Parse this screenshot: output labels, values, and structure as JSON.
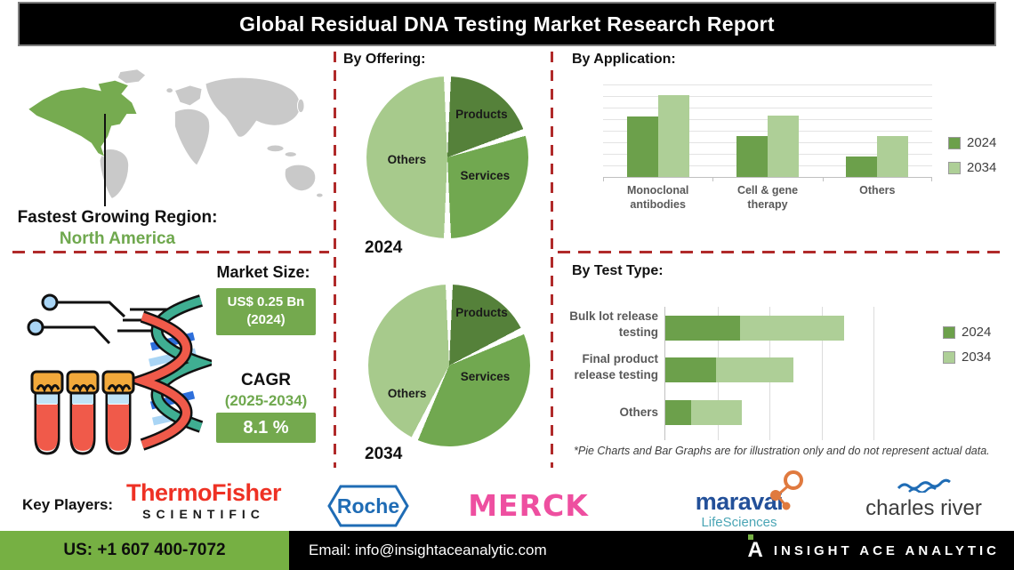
{
  "title": "Global Residual DNA Testing Market Research Report",
  "region": {
    "label": "Fastest Growing Region:",
    "value": "North America"
  },
  "market": {
    "size_label": "Market Size:",
    "size_value": "US$ 0.25 Bn",
    "size_year": "(2024)",
    "cagr_label": "CAGR",
    "cagr_period": "(2025-2034)",
    "cagr_value": "8.1 %"
  },
  "chart_data": [
    {
      "type": "pie",
      "section": "By Offering:",
      "year": "2024",
      "slices": [
        {
          "label": "Products",
          "value": 20,
          "color": "#55813a",
          "label_pos": {
            "x": "55%",
            "y": "19%"
          }
        },
        {
          "label": "Services",
          "value": 30,
          "color": "#71a850",
          "label_pos": {
            "x": "58%",
            "y": "57%"
          }
        },
        {
          "label": "Others",
          "value": 50,
          "color": "#a7ca8c",
          "label_pos": {
            "x": "13%",
            "y": "47%"
          }
        }
      ],
      "note": "illustrative"
    },
    {
      "type": "pie",
      "section": "By Offering:",
      "year": "2034",
      "slices": [
        {
          "label": "Products",
          "value": 18,
          "color": "#55813a",
          "label_pos": {
            "x": "54%",
            "y": "13%"
          }
        },
        {
          "label": "Services",
          "value": 39,
          "color": "#71a850",
          "label_pos": {
            "x": "57%",
            "y": "53%"
          }
        },
        {
          "label": "Others",
          "value": 43,
          "color": "#a7ca8c",
          "label_pos": {
            "x": "12%",
            "y": "63%"
          }
        }
      ],
      "note": "illustrative"
    },
    {
      "type": "bar",
      "section": "By Application:",
      "categories": [
        "Monoclonal antibodies",
        "Cell & gene therapy",
        "Others"
      ],
      "series": [
        {
          "name": "2024",
          "color": "#6ca04b",
          "values": [
            65,
            44,
            22
          ]
        },
        {
          "name": "2034",
          "color": "#aecf97",
          "values": [
            88,
            66,
            44
          ]
        }
      ],
      "ylim": [
        0,
        100
      ],
      "grid": true,
      "legend_position": "right",
      "note": "illustrative"
    },
    {
      "type": "stacked-horizontal-bar",
      "section": "By Test Type:",
      "categories": [
        "Bulk lot release testing",
        "Final product release testing",
        "Others"
      ],
      "series": [
        {
          "name": "2024",
          "color": "#6ca04b",
          "values": [
            28,
            19,
            9.5
          ]
        },
        {
          "name": "2034",
          "color": "#aecf97",
          "values": [
            39,
            29,
            19
          ]
        }
      ],
      "xlim": [
        0,
        100
      ],
      "grid": true,
      "legend_position": "right",
      "note": "illustrative"
    }
  ],
  "footnote": "*Pie Charts and Bar Graphs are for illustration only and do not represent actual data.",
  "key_players": {
    "label": "Key Players:",
    "thermo_line1": "ThermoFisher",
    "thermo_line2": "SCIENTIFIC",
    "roche": "Roche",
    "merck": "MERCK",
    "maravai_name": "maravai",
    "maravai_sub": "LifeSciences",
    "charles_river": "charles river"
  },
  "footer": {
    "phone": "US: +1 607 400-7072",
    "email": "Email: info@insightaceanalytic.com",
    "brand": "INSIGHT ACE ANALYTIC"
  },
  "colors": {
    "accent_green_dark": "#6ca04b",
    "accent_green_light": "#aecf97",
    "highlight_green": "#76b043",
    "dashed_red": "#b02a2a"
  }
}
